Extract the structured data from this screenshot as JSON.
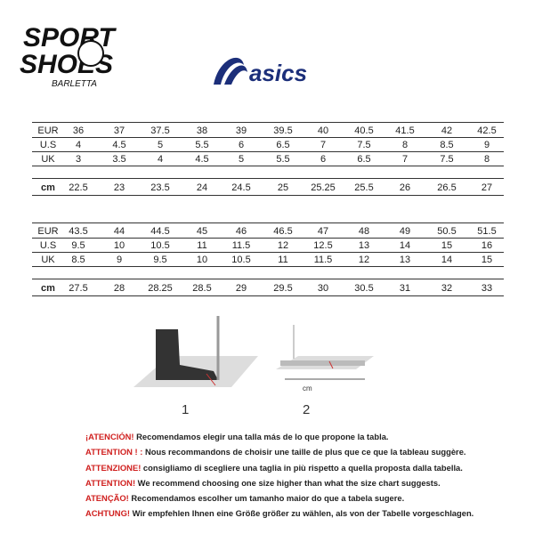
{
  "logos": {
    "sport_shoes": "SPORT SHOES BARLETTA",
    "brand": "asics"
  },
  "tables": [
    {
      "rows": [
        {
          "label": "EUR",
          "values": [
            "36",
            "37",
            "37.5",
            "38",
            "39",
            "39.5",
            "40",
            "40.5",
            "41.5",
            "42",
            "42.5"
          ]
        },
        {
          "label": "U.S",
          "values": [
            "4",
            "4.5",
            "5",
            "5.5",
            "6",
            "6.5",
            "7",
            "7.5",
            "8",
            "8.5",
            "9"
          ]
        },
        {
          "label": "UK",
          "values": [
            "3",
            "3.5",
            "4",
            "4.5",
            "5",
            "5.5",
            "6",
            "6.5",
            "7",
            "7.5",
            "8"
          ]
        }
      ],
      "cm": {
        "label": "cm",
        "values": [
          "22.5",
          "23",
          "23.5",
          "24",
          "24.5",
          "25",
          "25.25",
          "25.5",
          "26",
          "26.5",
          "27"
        ]
      }
    },
    {
      "rows": [
        {
          "label": "EUR",
          "values": [
            "43.5",
            "44",
            "44.5",
            "45",
            "46",
            "46.5",
            "47",
            "48",
            "49",
            "50.5",
            "51.5"
          ]
        },
        {
          "label": "U.S",
          "values": [
            "9.5",
            "10",
            "10.5",
            "11",
            "11.5",
            "12",
            "12.5",
            "13",
            "14",
            "15",
            "16"
          ]
        },
        {
          "label": "UK",
          "values": [
            "8.5",
            "9",
            "9.5",
            "10",
            "10.5",
            "11",
            "11.5",
            "12",
            "13",
            "14",
            "15"
          ]
        }
      ],
      "cm": {
        "label": "cm",
        "values": [
          "27.5",
          "28",
          "28.25",
          "28.5",
          "29",
          "29.5",
          "30",
          "30.5",
          "31",
          "32",
          "33"
        ]
      }
    }
  ],
  "figures": {
    "step1": "1",
    "step2": "2",
    "unit": "cm"
  },
  "notes": [
    {
      "warn": "¡ATENCIÓN!",
      "text": " Recomendamos elegir una talla más de lo que propone la tabla."
    },
    {
      "warn": "ATTENTION ! :",
      "text": " Nous recommandons de choisir une taille de plus que ce que la tableau suggère."
    },
    {
      "warn": "ATTENZIONE!",
      "text": " consigliamo di scegliere una taglia in più rispetto a quella proposta dalla tabella."
    },
    {
      "warn": "ATTENTION!",
      "text": " We recommend choosing one size higher than what the size chart suggests."
    },
    {
      "warn": "ATENÇÃO!",
      "text": " Recomendamos escolher um tamanho maior do que a tabela sugere."
    },
    {
      "warn": "ACHTUNG!",
      "text": " Wir empfehlen Ihnen eine Größe größer zu wählen, als von der Tabelle vorgeschlagen."
    }
  ],
  "colors": {
    "warning": "#d0201f",
    "asics": "#1c2f7a"
  }
}
